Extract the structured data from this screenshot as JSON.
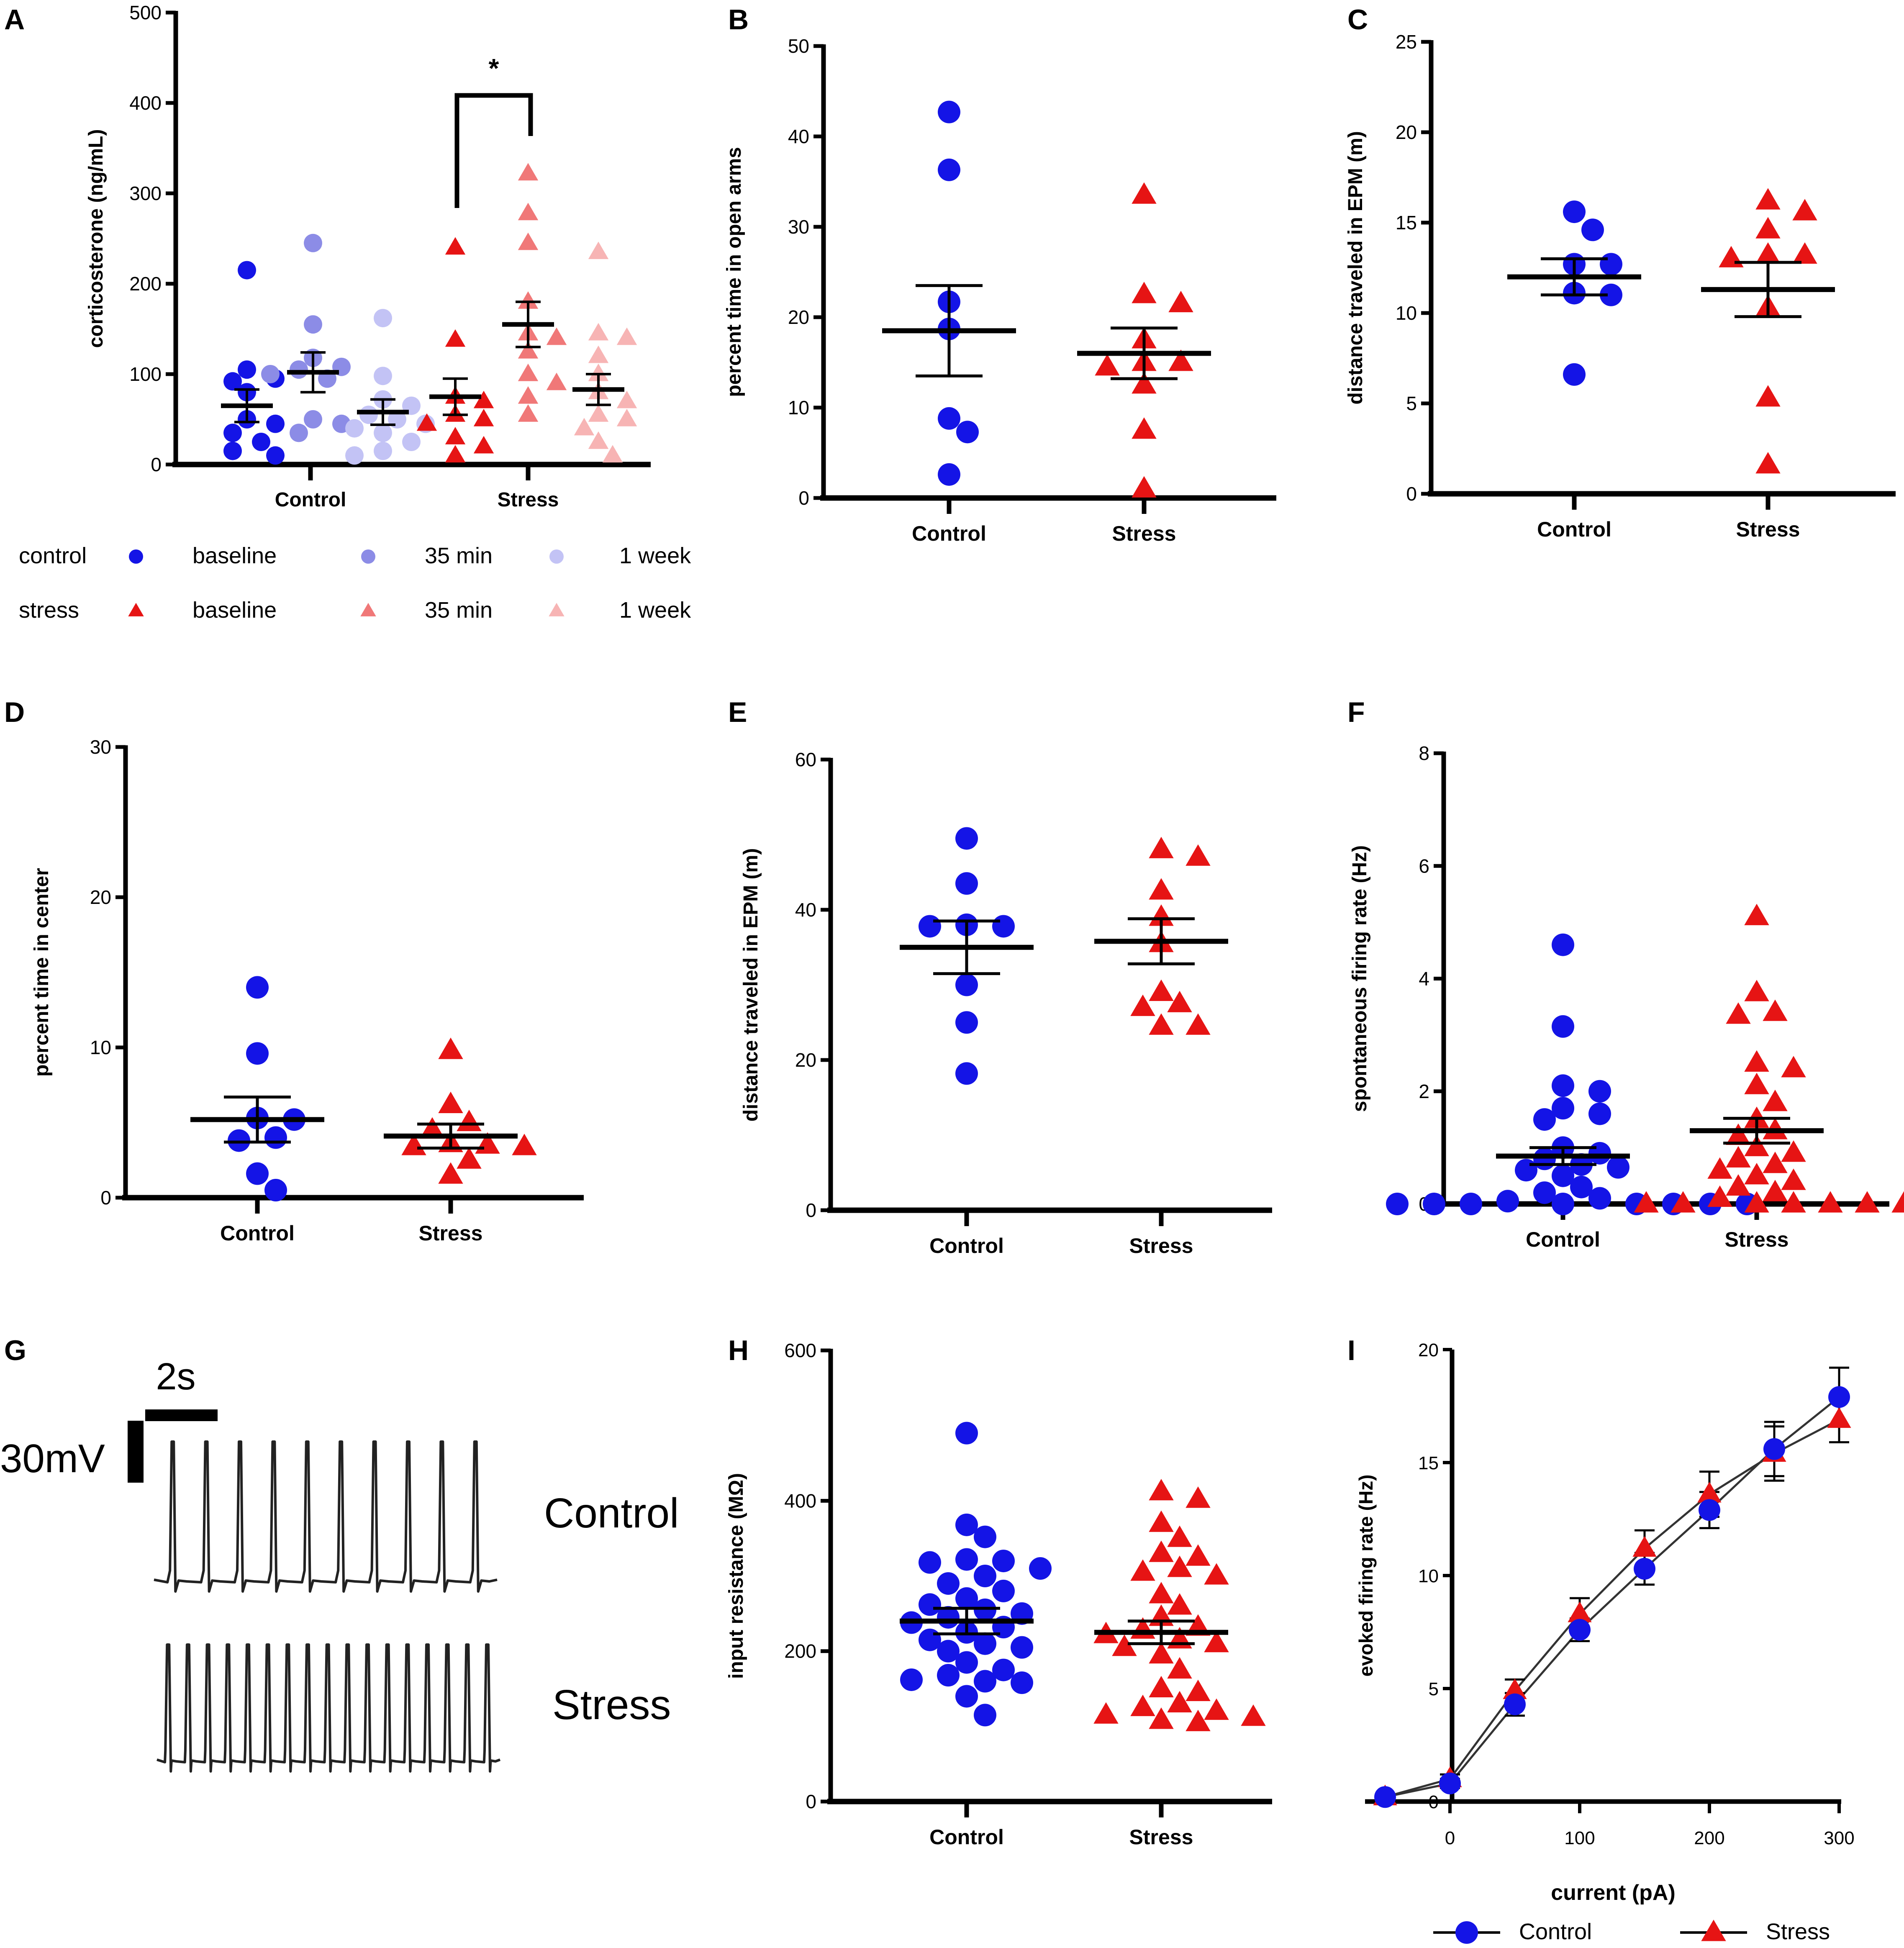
{
  "figure": {
    "colors": {
      "control": "#1414e6",
      "control_35min": "#8c8ce6",
      "control_1week": "#c3c3f5",
      "stress": "#e61414",
      "stress_35min": "#f07878",
      "stress_1week": "#f7b4b4",
      "axis": "#000000",
      "trace": "#222222"
    }
  },
  "chart_data": [
    {
      "panel": "A",
      "type": "scatter",
      "ylabel": "corticosterone (ng/mL)",
      "ylim": [
        0,
        500
      ],
      "yticks": [
        0,
        100,
        200,
        300,
        400,
        500
      ],
      "groups": [
        "Control",
        "Stress"
      ],
      "significance": "*",
      "series": [
        {
          "name": "control baseline",
          "group": "Control",
          "marker": "circle",
          "color": "control",
          "mean": 65,
          "sem": 18,
          "values": [
            215,
            105,
            95,
            92,
            80,
            50,
            45,
            35,
            25,
            15,
            10
          ]
        },
        {
          "name": "control 35 min",
          "group": "Control",
          "marker": "circle",
          "color": "control_35min",
          "mean": 102,
          "sem": 22,
          "values": [
            245,
            155,
            118,
            108,
            105,
            100,
            95,
            50,
            45,
            35
          ]
        },
        {
          "name": "control 1 week",
          "group": "Control",
          "marker": "circle",
          "color": "control_1week",
          "mean": 58,
          "sem": 14,
          "values": [
            162,
            98,
            72,
            65,
            55,
            50,
            45,
            40,
            35,
            25,
            15,
            10
          ]
        },
        {
          "name": "stress baseline",
          "group": "Stress",
          "marker": "triangle",
          "color": "stress",
          "mean": 75,
          "sem": 20,
          "values": [
            240,
            138,
            75,
            70,
            55,
            50,
            45,
            30,
            20,
            10
          ]
        },
        {
          "name": "stress 35 min",
          "group": "Stress",
          "marker": "triangle",
          "color": "stress_35min",
          "mean": 155,
          "sem": 25,
          "values": [
            322,
            278,
            245,
            180,
            145,
            140,
            125,
            100,
            90,
            75,
            55
          ]
        },
        {
          "name": "stress 1 week",
          "group": "Stress",
          "marker": "triangle",
          "color": "stress_1week",
          "mean": 83,
          "sem": 17,
          "values": [
            235,
            145,
            140,
            120,
            100,
            80,
            70,
            55,
            50,
            40,
            25,
            10
          ]
        }
      ]
    },
    {
      "panel": "B",
      "type": "scatter",
      "ylabel": "percent time in open arms",
      "ylim": [
        0,
        50
      ],
      "yticks": [
        0,
        10,
        20,
        30,
        40,
        50
      ],
      "categories": [
        "Control",
        "Stress"
      ],
      "series": [
        {
          "name": "Control",
          "marker": "circle",
          "color": "control",
          "mean": 18.5,
          "sem": 5,
          "values": [
            42.7,
            36.3,
            21.7,
            18.7,
            8.8,
            7.3,
            2.6
          ]
        },
        {
          "name": "Stress",
          "marker": "triangle",
          "color": "stress",
          "mean": 16,
          "sem": 2.8,
          "values": [
            33.5,
            22.5,
            21.5,
            17.5,
            15,
            15,
            14.5,
            12.5,
            7.5,
            1
          ]
        }
      ]
    },
    {
      "panel": "C",
      "type": "scatter",
      "ylabel": "distance traveled in EPM (m)",
      "ylim": [
        0,
        25
      ],
      "yticks": [
        0,
        5,
        10,
        15,
        20,
        25
      ],
      "categories": [
        "Control",
        "Stress"
      ],
      "series": [
        {
          "name": "Control",
          "marker": "circle",
          "color": "control",
          "mean": 12,
          "sem": 1,
          "values": [
            15.6,
            14.6,
            12.7,
            12.7,
            11.1,
            11.0,
            6.6
          ]
        },
        {
          "name": "Stress",
          "marker": "triangle",
          "color": "stress",
          "mean": 11.3,
          "sem": 1.5,
          "values": [
            16.2,
            15.6,
            14.6,
            13.2,
            13.2,
            13.0,
            10.3,
            5.3,
            1.6
          ]
        }
      ]
    },
    {
      "panel": "D",
      "type": "scatter",
      "ylabel": "percent time in center",
      "ylim": [
        0,
        30
      ],
      "yticks": [
        0,
        10,
        20,
        30
      ],
      "categories": [
        "Control",
        "Stress"
      ],
      "series": [
        {
          "name": "Control",
          "marker": "circle",
          "color": "control",
          "mean": 5.2,
          "sem": 1.5,
          "values": [
            14,
            9.6,
            5.3,
            5.2,
            4,
            3.8,
            1.6,
            0.5
          ]
        },
        {
          "name": "Stress",
          "marker": "triangle",
          "color": "stress",
          "mean": 4.1,
          "sem": 0.8,
          "values": [
            9.8,
            6.2,
            5,
            4.5,
            3.6,
            3.5,
            3.4,
            3.4,
            2.5,
            1.5
          ]
        }
      ]
    },
    {
      "panel": "E",
      "type": "scatter",
      "ylabel": "distance traveled in EPM (m)",
      "ylim": [
        0,
        60
      ],
      "yticks": [
        0,
        20,
        40,
        60
      ],
      "categories": [
        "Control",
        "Stress"
      ],
      "series": [
        {
          "name": "Control",
          "marker": "circle",
          "color": "control",
          "mean": 35,
          "sem": 3.5,
          "values": [
            49.5,
            43.5,
            38,
            37.8,
            37.8,
            30,
            25,
            18.2
          ]
        },
        {
          "name": "Stress",
          "marker": "triangle",
          "color": "stress",
          "mean": 35.8,
          "sem": 3,
          "values": [
            48,
            47,
            42.5,
            39,
            35.5,
            29,
            27.5,
            27,
            24.5,
            24.5
          ]
        }
      ]
    },
    {
      "panel": "F",
      "type": "scatter",
      "ylabel": "spontaneous firing rate (Hz)",
      "ylim": [
        0,
        8
      ],
      "yticks": [
        0,
        2,
        4,
        6,
        8
      ],
      "categories": [
        "Control",
        "Stress"
      ],
      "series": [
        {
          "name": "Control",
          "marker": "circle",
          "color": "control",
          "mean": 0.85,
          "sem": 0.15,
          "values": [
            4.6,
            3.15,
            2.1,
            2.0,
            1.7,
            1.6,
            1.5,
            1.0,
            0.9,
            0.8,
            0.7,
            0.65,
            0.6,
            0.5,
            0.3,
            0.2,
            0.1,
            0.05,
            0,
            0,
            0,
            0,
            0,
            0,
            0,
            0
          ]
        },
        {
          "name": "Stress",
          "marker": "triangle",
          "color": "stress",
          "mean": 1.3,
          "sem": 0.22,
          "values": [
            5.1,
            3.75,
            3.4,
            3.35,
            2.5,
            2.4,
            2.1,
            1.8,
            1.5,
            1.3,
            1.2,
            1.0,
            0.9,
            0.8,
            0.7,
            0.6,
            0.5,
            0.4,
            0.3,
            0.2,
            0.1,
            0,
            0,
            0,
            0,
            0,
            0,
            0
          ]
        }
      ]
    },
    {
      "panel": "H",
      "type": "scatter",
      "ylabel": "input resistance  (MΩ)",
      "ylim": [
        0,
        600
      ],
      "yticks": [
        0,
        200,
        400,
        600
      ],
      "categories": [
        "Control",
        "Stress"
      ],
      "series": [
        {
          "name": "Control",
          "marker": "circle",
          "color": "control",
          "mean": 240,
          "sem": 17,
          "values": [
            490,
            368,
            352,
            322,
            320,
            318,
            310,
            300,
            290,
            280,
            270,
            262,
            255,
            250,
            245,
            238,
            232,
            225,
            215,
            210,
            205,
            200,
            185,
            175,
            168,
            162,
            160,
            158,
            140,
            115
          ]
        },
        {
          "name": "Stress",
          "marker": "triangle",
          "color": "stress",
          "mean": 225,
          "sem": 15,
          "values": [
            412,
            402,
            370,
            350,
            330,
            325,
            310,
            305,
            300,
            275,
            260,
            245,
            232,
            228,
            222,
            215,
            210,
            205,
            195,
            175,
            150,
            145,
            130,
            125,
            120,
            115,
            112,
            108,
            105
          ]
        }
      ]
    },
    {
      "panel": "I",
      "type": "line",
      "xlabel": "current (pA)",
      "ylabel": "evoked firing rate (Hz)",
      "xlim": [
        -50,
        300
      ],
      "ylim": [
        0,
        20
      ],
      "xticks": [
        0,
        100,
        200,
        300
      ],
      "yticks": [
        0,
        5,
        10,
        15,
        20
      ],
      "x": [
        -50,
        0,
        50,
        100,
        150,
        200,
        250,
        300
      ],
      "series": [
        {
          "name": "Control",
          "marker": "circle",
          "color": "control",
          "values": [
            0.2,
            0.8,
            4.3,
            7.6,
            10.3,
            12.9,
            15.6,
            17.9
          ],
          "sem": [
            0.1,
            0.2,
            0.5,
            0.5,
            0.7,
            0.8,
            1.2,
            1.3
          ]
        },
        {
          "name": "Stress",
          "marker": "triangle",
          "color": "stress",
          "values": [
            0.2,
            1.0,
            4.9,
            8.3,
            11.2,
            13.6,
            15.4,
            16.9
          ],
          "sem": [
            0.1,
            0.2,
            0.5,
            0.7,
            0.8,
            1.0,
            1.2,
            1.0
          ]
        }
      ]
    }
  ],
  "panel_a_legend": [
    {
      "group": "control",
      "marker": "circle",
      "color": "control",
      "time": "baseline"
    },
    {
      "group": "",
      "marker": "circle",
      "color": "control_35min",
      "time": "35 min"
    },
    {
      "group": "",
      "marker": "circle",
      "color": "control_1week",
      "time": "1 week"
    },
    {
      "group": "stress",
      "marker": "triangle",
      "color": "stress",
      "time": "baseline"
    },
    {
      "group": "",
      "marker": "triangle",
      "color": "stress_35min",
      "time": "35 min"
    },
    {
      "group": "",
      "marker": "triangle",
      "color": "stress_1week",
      "time": "1 week"
    }
  ],
  "panel_i_legend": [
    "Control",
    "Stress"
  ],
  "panel_g": {
    "scale_time": "2s",
    "scale_voltage": "30mV",
    "trace_labels": [
      "Control",
      "Stress"
    ],
    "control_spike_count": 10,
    "stress_spike_count": 17
  }
}
